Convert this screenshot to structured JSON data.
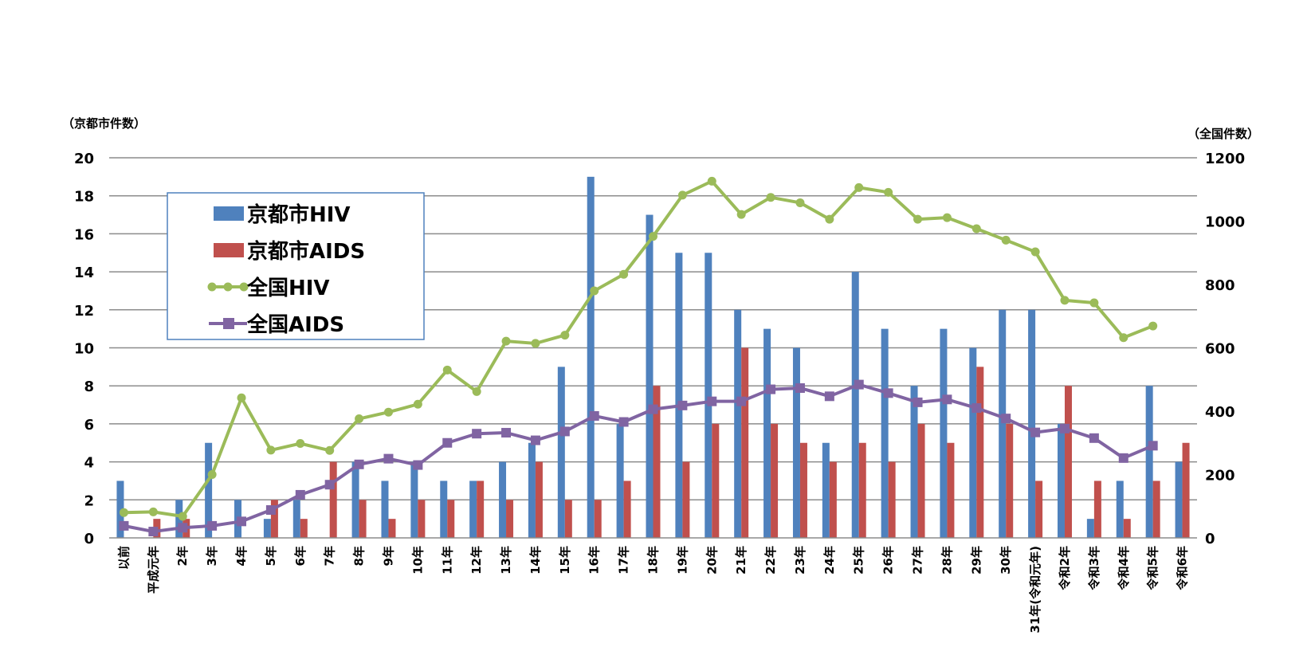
{
  "chart_data": {
    "type": "bar",
    "left_axis_title": "（京都市件数）",
    "right_axis_title": "（全国件数）",
    "left_ylim": [
      0,
      20
    ],
    "left_ticks": [
      "0",
      "2",
      "4",
      "6",
      "8",
      "10",
      "12",
      "14",
      "16",
      "18",
      "20"
    ],
    "right_ylim": [
      0,
      1200
    ],
    "right_ticks": [
      "0",
      "200",
      "400",
      "600",
      "800",
      "1000",
      "1200"
    ],
    "grid": true,
    "legend_position": "top-left",
    "categories": [
      "以前",
      "平成元年",
      "2年",
      "3年",
      "4年",
      "5年",
      "6年",
      "7年",
      "8年",
      "9年",
      "10年",
      "11年",
      "12年",
      "13年",
      "14年",
      "15年",
      "16年",
      "17年",
      "18年",
      "19年",
      "20年",
      "21年",
      "22年",
      "23年",
      "24年",
      "25年",
      "26年",
      "27年",
      "28年",
      "29年",
      "30年",
      "31年(令和元年)",
      "令和2年",
      "令和3年",
      "令和4年",
      "令和5年",
      "令和6年"
    ],
    "series": [
      {
        "name": "京都市HIV",
        "kind": "bar",
        "axis": "left",
        "color": "#4f81bd",
        "values": [
          3,
          0,
          2,
          5,
          2,
          1,
          2,
          0,
          4,
          3,
          4,
          3,
          3,
          4,
          5,
          9,
          19,
          6,
          17,
          15,
          15,
          12,
          11,
          10,
          5,
          14,
          11,
          8,
          11,
          10,
          12,
          12,
          6,
          1,
          3,
          8,
          4
        ]
      },
      {
        "name": "京都市AIDS",
        "kind": "bar",
        "axis": "left",
        "color": "#c0504d",
        "values": [
          0,
          1,
          1,
          0,
          0,
          2,
          1,
          4,
          2,
          1,
          2,
          2,
          3,
          2,
          4,
          2,
          2,
          3,
          8,
          4,
          6,
          10,
          6,
          5,
          4,
          5,
          4,
          6,
          5,
          9,
          6,
          3,
          8,
          3,
          1,
          3,
          5
        ]
      },
      {
        "name": "全国HIV",
        "kind": "line",
        "axis": "right",
        "color": "#9bbb59",
        "marker": "circle",
        "values": [
          80,
          82,
          68,
          200,
          442,
          277,
          298,
          276,
          376,
          397,
          422,
          530,
          462,
          621,
          614,
          640,
          780,
          832,
          952,
          1082,
          1126,
          1021,
          1075,
          1058,
          1006,
          1106,
          1091,
          1006,
          1011,
          976,
          940,
          903,
          750,
          742,
          632,
          669,
          null
        ]
      },
      {
        "name": "全国AIDS",
        "kind": "line",
        "axis": "right",
        "color": "#8064a2",
        "marker": "square",
        "values": [
          38,
          20,
          32,
          38,
          52,
          88,
          136,
          168,
          232,
          250,
          230,
          300,
          329,
          332,
          308,
          336,
          385,
          366,
          406,
          418,
          431,
          431,
          469,
          473,
          447,
          484,
          457,
          428,
          437,
          410,
          377,
          333,
          345,
          315,
          252,
          291,
          null
        ]
      }
    ]
  }
}
